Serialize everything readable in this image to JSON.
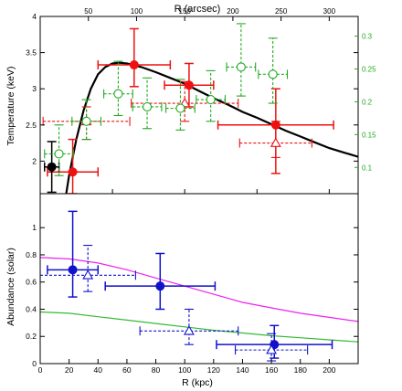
{
  "chart_data": [
    {
      "type": "scatter",
      "panel": "temperature",
      "xlabel": "",
      "ylabel": "Temperature (keV)",
      "xlim": [
        0,
        220
      ],
      "ylim": [
        1.55,
        4.0
      ],
      "yticks": [
        2,
        2.5,
        3,
        3.5,
        4
      ],
      "xticks": [
        0,
        50,
        100,
        150,
        200
      ],
      "top_axis": {
        "label": "R (arcsec)",
        "ticks": [
          50,
          100,
          150,
          200,
          250,
          300
        ]
      },
      "right_axis": {
        "ticks": [
          0.1,
          0.15,
          0.2,
          0.25,
          0.3
        ],
        "color": "#22aa22"
      },
      "series": [
        {
          "role": "red-solid",
          "color": "#ee1111",
          "marker": "filled-circle",
          "linestyle": "solid",
          "points": [
            {
              "x": 22.5,
              "xerr": 17.5,
              "y": 1.85,
              "yerr": [
                0.3,
                0.45
              ]
            },
            {
              "x": 65,
              "xerr": 25,
              "y": 3.33,
              "yerr": [
                0.3,
                0.5
              ]
            },
            {
              "x": 103,
              "xerr": 17,
              "y": 3.05,
              "yerr": [
                0.3,
                0.3
              ]
            },
            {
              "x": 163,
              "xerr": 40,
              "y": 2.5,
              "yerr": [
                0.67,
                0.5
              ]
            }
          ]
        },
        {
          "role": "black",
          "color": "#000000",
          "marker": "filled-circle",
          "linestyle": "solid",
          "points": [
            {
              "x": 8,
              "xerr": 5,
              "y": 1.92,
              "yerr": [
                0.35,
                0.35
              ]
            }
          ]
        },
        {
          "role": "red-dashed",
          "color": "#ee1111",
          "marker": "open-triangle",
          "linestyle": "dashed",
          "points": [
            {
              "x": 32,
              "xerr": 30,
              "y": 2.55,
              "yerr": [
                0.25,
                0.2
              ]
            },
            {
              "x": 100,
              "xerr": 37,
              "y": 2.8,
              "yerr": [
                0.25,
                0.3
              ]
            },
            {
              "x": 163,
              "xerr": 25,
              "y": 2.25,
              "yerr": [
                0.2,
                0.3
              ]
            }
          ]
        },
        {
          "role": "green-dashed",
          "color": "#22aa22",
          "marker": "open-circle",
          "linestyle": "dashed",
          "points": [
            {
              "x": 13,
              "xerr": 10,
              "y": 2.1,
              "yerr": [
                0.3,
                0.4
              ]
            },
            {
              "x": 32,
              "xerr": 10,
              "y": 2.55,
              "yerr": [
                0.25,
                0.3
              ]
            },
            {
              "x": 54,
              "xerr": 10,
              "y": 2.93,
              "yerr": [
                0.3,
                0.45
              ]
            },
            {
              "x": 74,
              "xerr": 10,
              "y": 2.75,
              "yerr": [
                0.3,
                0.4
              ]
            },
            {
              "x": 97,
              "xerr": 10,
              "y": 2.73,
              "yerr": [
                0.3,
                0.4
              ]
            },
            {
              "x": 118,
              "xerr": 10,
              "y": 2.85,
              "yerr": [
                0.3,
                0.4
              ]
            },
            {
              "x": 139,
              "xerr": 10,
              "y": 3.3,
              "yerr": [
                0.4,
                0.6
              ]
            },
            {
              "x": 161,
              "xerr": 10,
              "y": 3.2,
              "yerr": [
                0.4,
                0.5
              ]
            }
          ]
        }
      ],
      "model_curve": {
        "color": "#000000",
        "points": [
          [
            18,
            1.55
          ],
          [
            20,
            1.8
          ],
          [
            25,
            2.3
          ],
          [
            30,
            2.7
          ],
          [
            35,
            3.0
          ],
          [
            40,
            3.2
          ],
          [
            45,
            3.3
          ],
          [
            50,
            3.35
          ],
          [
            55,
            3.36
          ],
          [
            60,
            3.35
          ],
          [
            70,
            3.3
          ],
          [
            80,
            3.23
          ],
          [
            90,
            3.15
          ],
          [
            100,
            3.07
          ],
          [
            110,
            2.97
          ],
          [
            120,
            2.87
          ],
          [
            130,
            2.78
          ],
          [
            140,
            2.68
          ],
          [
            150,
            2.6
          ],
          [
            160,
            2.51
          ],
          [
            170,
            2.42
          ],
          [
            180,
            2.34
          ],
          [
            190,
            2.26
          ],
          [
            200,
            2.18
          ],
          [
            210,
            2.12
          ],
          [
            220,
            2.06
          ]
        ]
      }
    },
    {
      "type": "scatter",
      "panel": "abundance",
      "xlabel": "R (kpc)",
      "ylabel": "Abundance (solar)",
      "xlim": [
        0,
        220
      ],
      "ylim": [
        0,
        1.25
      ],
      "yticks": [
        0,
        0.2,
        0.4,
        0.6,
        0.8,
        1
      ],
      "xticks": [
        0,
        20,
        40,
        60,
        80,
        100,
        120,
        140,
        160,
        180,
        200
      ],
      "series": [
        {
          "role": "blue-solid",
          "color": "#1111cc",
          "marker": "filled-circle",
          "linestyle": "solid",
          "points": [
            {
              "x": 22.5,
              "xerr": 17.5,
              "y": 0.69,
              "yerr": [
                0.2,
                0.43
              ]
            },
            {
              "x": 83,
              "xerr": 38,
              "y": 0.57,
              "yerr": [
                0.17,
                0.24
              ]
            },
            {
              "x": 162,
              "xerr": 40,
              "y": 0.14,
              "yerr": [
                0.1,
                0.14
              ]
            }
          ]
        },
        {
          "role": "blue-dashed",
          "color": "#1111cc",
          "marker": "open-triangle",
          "linestyle": "dashed",
          "points": [
            {
              "x": 33,
              "xerr": 33,
              "y": 0.65,
              "yerr": [
                0.12,
                0.22
              ]
            },
            {
              "x": 103,
              "xerr": 34,
              "y": 0.24,
              "yerr": [
                0.1,
                0.16
              ]
            },
            {
              "x": 160,
              "xerr": 25,
              "y": 0.1,
              "yerr": [
                0.08,
                0.12
              ]
            }
          ]
        }
      ],
      "curves": [
        {
          "color": "#ee22ee",
          "points": [
            [
              0,
              0.78
            ],
            [
              20,
              0.77
            ],
            [
              40,
              0.74
            ],
            [
              60,
              0.69
            ],
            [
              80,
              0.63
            ],
            [
              100,
              0.57
            ],
            [
              120,
              0.51
            ],
            [
              140,
              0.45
            ],
            [
              160,
              0.41
            ],
            [
              180,
              0.37
            ],
            [
              200,
              0.34
            ],
            [
              220,
              0.31
            ]
          ]
        },
        {
          "color": "#33bb33",
          "points": [
            [
              0,
              0.38
            ],
            [
              20,
              0.37
            ],
            [
              40,
              0.345
            ],
            [
              60,
              0.32
            ],
            [
              80,
              0.295
            ],
            [
              100,
              0.27
            ],
            [
              120,
              0.245
            ],
            [
              140,
              0.225
            ],
            [
              160,
              0.205
            ],
            [
              180,
              0.19
            ],
            [
              200,
              0.175
            ],
            [
              220,
              0.16
            ]
          ]
        }
      ]
    }
  ]
}
